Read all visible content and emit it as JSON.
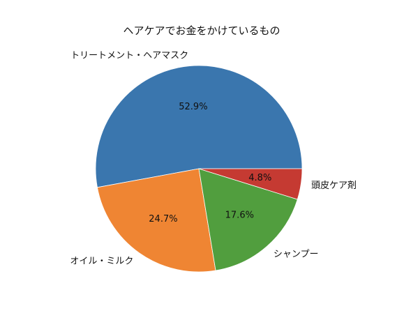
{
  "chart_data": {
    "type": "pie",
    "title": "ヘアケアでお金をかけているもの",
    "slices": [
      {
        "label": "トリートメント・ヘアマスク",
        "value": 52.9,
        "pct_label": "52.9%",
        "color": "#3a76ae"
      },
      {
        "label": "オイル・ミルク",
        "value": 24.7,
        "pct_label": "24.7%",
        "color": "#ef8533"
      },
      {
        "label": "シャンプー",
        "value": 17.6,
        "pct_label": "17.6%",
        "color": "#519e3e"
      },
      {
        "label": "頭皮ケア剤",
        "value": 4.8,
        "pct_label": "4.8%",
        "color": "#c53a32"
      }
    ],
    "start_angle_deg": 0,
    "direction": "counterclockwise",
    "legend": "none"
  }
}
